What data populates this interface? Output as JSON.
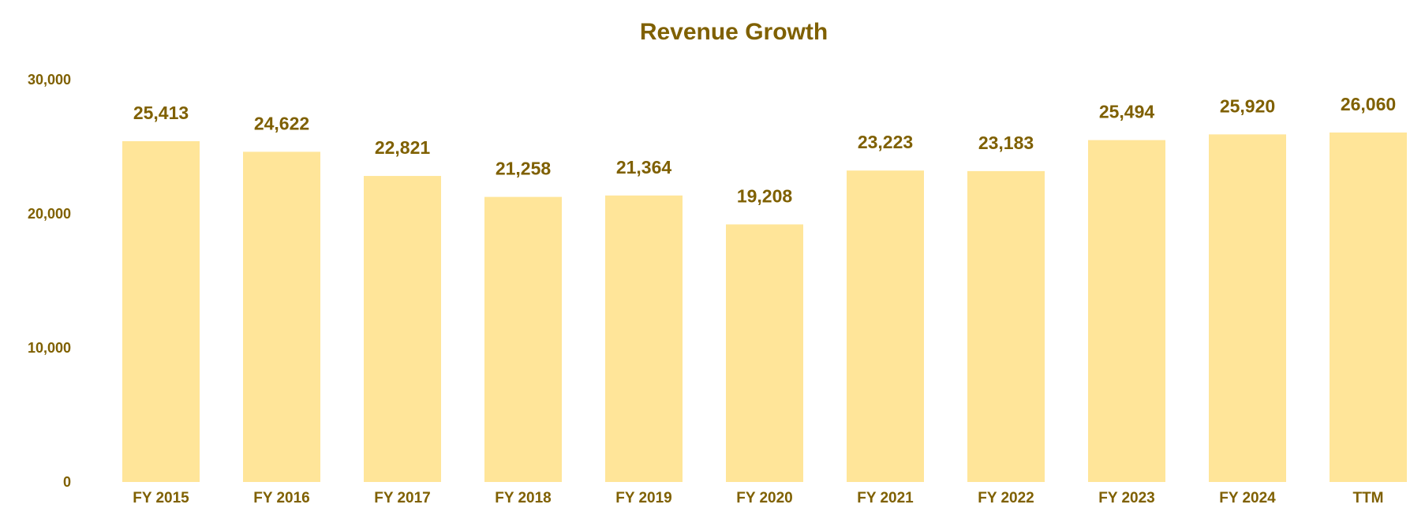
{
  "colors": {
    "text": "#7f6000",
    "bar": "#ffe599",
    "background": "#ffffff"
  },
  "chart_data": {
    "type": "bar",
    "title": "Revenue Growth",
    "xlabel": "",
    "ylabel": "",
    "ylim": [
      0,
      30000
    ],
    "yticks": [
      "0",
      "10,000",
      "20,000",
      "30,000"
    ],
    "grid": false,
    "legend": "none",
    "categories": [
      "FY 2015",
      "FY 2016",
      "FY 2017",
      "FY 2018",
      "FY 2019",
      "FY 2020",
      "FY 2021",
      "FY 2022",
      "FY 2023",
      "FY 2024",
      "TTM"
    ],
    "values": [
      25413,
      24622,
      22821,
      21258,
      21364,
      19208,
      23223,
      23183,
      25494,
      25920,
      26060
    ],
    "data_labels": [
      "25,413",
      "24,622",
      "22,821",
      "21,258",
      "21,364",
      "19,208",
      "23,223",
      "23,183",
      "25,494",
      "25,920",
      "26,060"
    ]
  }
}
